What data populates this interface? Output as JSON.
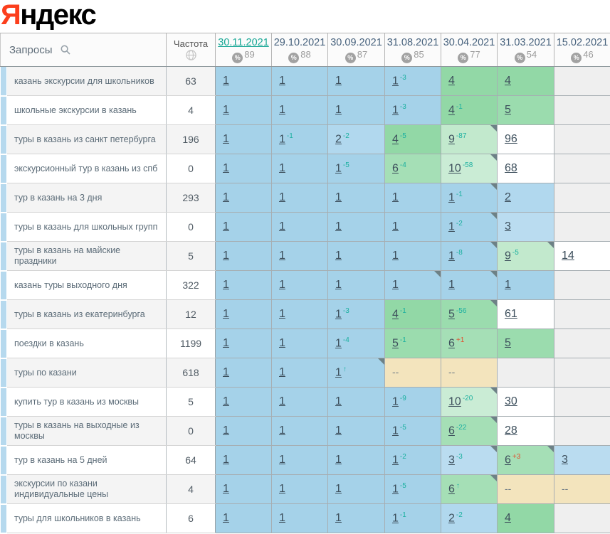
{
  "logo": {
    "first_letter": "Я",
    "rest": "ндекс"
  },
  "palette": {
    "yandex_red": "#fc3f1d",
    "active_date_teal": "#17a795",
    "delta_up_teal": "#1cb0a0",
    "delta_down_red": "#e2502f",
    "pos1_blue": "#a5d2e9",
    "pos2_3_light_blue": "#b5daef",
    "pos4_6_green": "#9adcae",
    "pos7_10_light_green": "#c6ebd1",
    "not_found_beige": "#f3e4bd",
    "no_data_gray": "#efefef",
    "row_stripe_blue": "#b6d9ee",
    "badge_gray": "#a2a2a2"
  },
  "header": {
    "queries_label": "Запросы",
    "frequency_label": "Частота",
    "percent_icon": "%",
    "dates": [
      {
        "label": "30.11.2021",
        "visibility": "89",
        "active": true
      },
      {
        "label": "29.10.2021",
        "visibility": "88",
        "active": false
      },
      {
        "label": "30.09.2021",
        "visibility": "87",
        "active": false
      },
      {
        "label": "31.08.2021",
        "visibility": "85",
        "active": false
      },
      {
        "label": "30.04.2021",
        "visibility": "77",
        "active": false
      },
      {
        "label": "31.03.2021",
        "visibility": "54",
        "active": false
      },
      {
        "label": "15.02.2021",
        "visibility": "46",
        "active": false
      }
    ]
  },
  "rows": [
    {
      "query": "казань экскурсии для школьников",
      "frequency": "63",
      "cells": [
        {
          "pos": "1",
          "band": "pos1"
        },
        {
          "pos": "1",
          "band": "pos1"
        },
        {
          "pos": "1",
          "band": "pos1"
        },
        {
          "pos": "1",
          "band": "pos1",
          "delta": "-3"
        },
        {
          "pos": "4",
          "band": "pos4"
        },
        {
          "pos": "4",
          "band": "pos4"
        },
        {
          "band": "empty"
        }
      ]
    },
    {
      "query": "школьные экскурсии в казань",
      "frequency": "4",
      "cells": [
        {
          "pos": "1",
          "band": "pos1"
        },
        {
          "pos": "1",
          "band": "pos1"
        },
        {
          "pos": "1",
          "band": "pos1"
        },
        {
          "pos": "1",
          "band": "pos1",
          "delta": "-3"
        },
        {
          "pos": "4",
          "band": "pos4",
          "delta": "-1"
        },
        {
          "pos": "5",
          "band": "pos5"
        },
        {
          "band": "empty"
        }
      ]
    },
    {
      "query": "туры в казань из санкт петербурга",
      "frequency": "196",
      "cells": [
        {
          "pos": "1",
          "band": "pos1"
        },
        {
          "pos": "1",
          "band": "pos1",
          "delta": "-1"
        },
        {
          "pos": "2",
          "band": "pos2",
          "delta": "-2"
        },
        {
          "pos": "4",
          "band": "pos4",
          "delta": "-5"
        },
        {
          "pos": "9",
          "band": "pos9",
          "delta": "-87",
          "corner": true
        },
        {
          "pos": "96",
          "band": "white"
        },
        {
          "band": "empty"
        }
      ]
    },
    {
      "query": "экскурсионный тур в казань из спб",
      "frequency": "0",
      "cells": [
        {
          "pos": "1",
          "band": "pos1"
        },
        {
          "pos": "1",
          "band": "pos1"
        },
        {
          "pos": "1",
          "band": "pos1",
          "delta": "-5"
        },
        {
          "pos": "6",
          "band": "pos6",
          "delta": "-4"
        },
        {
          "pos": "10",
          "band": "pos10",
          "delta": "-58",
          "corner": true
        },
        {
          "pos": "68",
          "band": "white"
        },
        {
          "band": "empty"
        }
      ]
    },
    {
      "query": "тур в казань на 3 дня",
      "frequency": "293",
      "cells": [
        {
          "pos": "1",
          "band": "pos1"
        },
        {
          "pos": "1",
          "band": "pos1"
        },
        {
          "pos": "1",
          "band": "pos1"
        },
        {
          "pos": "1",
          "band": "pos1"
        },
        {
          "pos": "1",
          "band": "pos1",
          "delta": "-1",
          "corner": true
        },
        {
          "pos": "2",
          "band": "pos2"
        },
        {
          "band": "empty"
        }
      ]
    },
    {
      "query": "туры в казань для школьных групп",
      "frequency": "0",
      "cells": [
        {
          "pos": "1",
          "band": "pos1"
        },
        {
          "pos": "1",
          "band": "pos1"
        },
        {
          "pos": "1",
          "band": "pos1"
        },
        {
          "pos": "1",
          "band": "pos1"
        },
        {
          "pos": "1",
          "band": "pos1",
          "delta": "-2",
          "corner": true
        },
        {
          "pos": "3",
          "band": "pos3"
        },
        {
          "band": "empty"
        }
      ]
    },
    {
      "query": "туры в казань на майские праздники",
      "frequency": "5",
      "cells": [
        {
          "pos": "1",
          "band": "pos1"
        },
        {
          "pos": "1",
          "band": "pos1"
        },
        {
          "pos": "1",
          "band": "pos1"
        },
        {
          "pos": "1",
          "band": "pos1"
        },
        {
          "pos": "1",
          "band": "pos1",
          "delta": "-8",
          "corner": true
        },
        {
          "pos": "9",
          "band": "pos9",
          "delta": "-5",
          "corner": true
        },
        {
          "pos": "14",
          "band": "white"
        }
      ]
    },
    {
      "query": "казань туры выходного дня",
      "frequency": "322",
      "cells": [
        {
          "pos": "1",
          "band": "pos1"
        },
        {
          "pos": "1",
          "band": "pos1"
        },
        {
          "pos": "1",
          "band": "pos1"
        },
        {
          "pos": "1",
          "band": "pos1",
          "corner": true
        },
        {
          "pos": "1",
          "band": "pos1",
          "corner": true
        },
        {
          "pos": "1",
          "band": "pos1"
        },
        {
          "band": "empty"
        }
      ]
    },
    {
      "query": "туры в казань из екатеринбурга",
      "frequency": "12",
      "cells": [
        {
          "pos": "1",
          "band": "pos1"
        },
        {
          "pos": "1",
          "band": "pos1"
        },
        {
          "pos": "1",
          "band": "pos1",
          "delta": "-3"
        },
        {
          "pos": "4",
          "band": "pos4",
          "delta": "-1"
        },
        {
          "pos": "5",
          "band": "pos5",
          "delta": "-56",
          "corner": true
        },
        {
          "pos": "61",
          "band": "white"
        },
        {
          "band": "empty"
        }
      ]
    },
    {
      "query": "поездки в казань",
      "frequency": "1199",
      "cells": [
        {
          "pos": "1",
          "band": "pos1"
        },
        {
          "pos": "1",
          "band": "pos1"
        },
        {
          "pos": "1",
          "band": "pos1",
          "delta": "-4"
        },
        {
          "pos": "5",
          "band": "pos5",
          "delta": "-1"
        },
        {
          "pos": "6",
          "band": "pos6",
          "delta": "+1"
        },
        {
          "pos": "5",
          "band": "pos5"
        },
        {
          "band": "empty"
        }
      ]
    },
    {
      "query": "туры по казани",
      "frequency": "618",
      "cells": [
        {
          "pos": "1",
          "band": "pos1"
        },
        {
          "pos": "1",
          "band": "pos1"
        },
        {
          "pos": "1",
          "band": "pos1",
          "delta": "↑",
          "corner": true
        },
        {
          "pos": "--",
          "band": "dash"
        },
        {
          "pos": "--",
          "band": "dash"
        },
        {
          "band": "empty"
        },
        {
          "band": "empty"
        }
      ]
    },
    {
      "query": "купить тур в казань из москвы",
      "frequency": "5",
      "cells": [
        {
          "pos": "1",
          "band": "pos1"
        },
        {
          "pos": "1",
          "band": "pos1"
        },
        {
          "pos": "1",
          "band": "pos1"
        },
        {
          "pos": "1",
          "band": "pos1",
          "delta": "-9"
        },
        {
          "pos": "10",
          "band": "pos10",
          "delta": "-20",
          "corner": true
        },
        {
          "pos": "30",
          "band": "white"
        },
        {
          "band": "empty"
        }
      ]
    },
    {
      "query": "туры в казань на выходные из москвы",
      "frequency": "0",
      "cells": [
        {
          "pos": "1",
          "band": "pos1"
        },
        {
          "pos": "1",
          "band": "pos1"
        },
        {
          "pos": "1",
          "band": "pos1"
        },
        {
          "pos": "1",
          "band": "pos1",
          "delta": "-5"
        },
        {
          "pos": "6",
          "band": "pos6",
          "delta": "-22",
          "corner": true
        },
        {
          "pos": "28",
          "band": "white"
        },
        {
          "band": "empty"
        }
      ]
    },
    {
      "query": "тур в казань на 5 дней",
      "frequency": "64",
      "cells": [
        {
          "pos": "1",
          "band": "pos1"
        },
        {
          "pos": "1",
          "band": "pos1"
        },
        {
          "pos": "1",
          "band": "pos1"
        },
        {
          "pos": "1",
          "band": "pos1",
          "delta": "-2"
        },
        {
          "pos": "3",
          "band": "pos3",
          "delta": "-3",
          "corner": true
        },
        {
          "pos": "6",
          "band": "pos6",
          "delta": "+3",
          "corner": true
        },
        {
          "pos": "3",
          "band": "pos3"
        }
      ]
    },
    {
      "query": "экскурсии по казани индивидуальные цены",
      "frequency": "4",
      "cells": [
        {
          "pos": "1",
          "band": "pos1"
        },
        {
          "pos": "1",
          "band": "pos1"
        },
        {
          "pos": "1",
          "band": "pos1"
        },
        {
          "pos": "1",
          "band": "pos1",
          "delta": "-5"
        },
        {
          "pos": "6",
          "band": "pos6",
          "delta": "↑",
          "corner": true
        },
        {
          "pos": "--",
          "band": "dash"
        },
        {
          "pos": "--",
          "band": "dash"
        }
      ]
    },
    {
      "query": "туры для школьников в казань",
      "frequency": "6",
      "cells": [
        {
          "pos": "1",
          "band": "pos1"
        },
        {
          "pos": "1",
          "band": "pos1"
        },
        {
          "pos": "1",
          "band": "pos1"
        },
        {
          "pos": "1",
          "band": "pos1",
          "delta": "-1"
        },
        {
          "pos": "2",
          "band": "pos2",
          "delta": "-2"
        },
        {
          "pos": "4",
          "band": "pos4"
        },
        {
          "band": "empty"
        }
      ]
    }
  ]
}
